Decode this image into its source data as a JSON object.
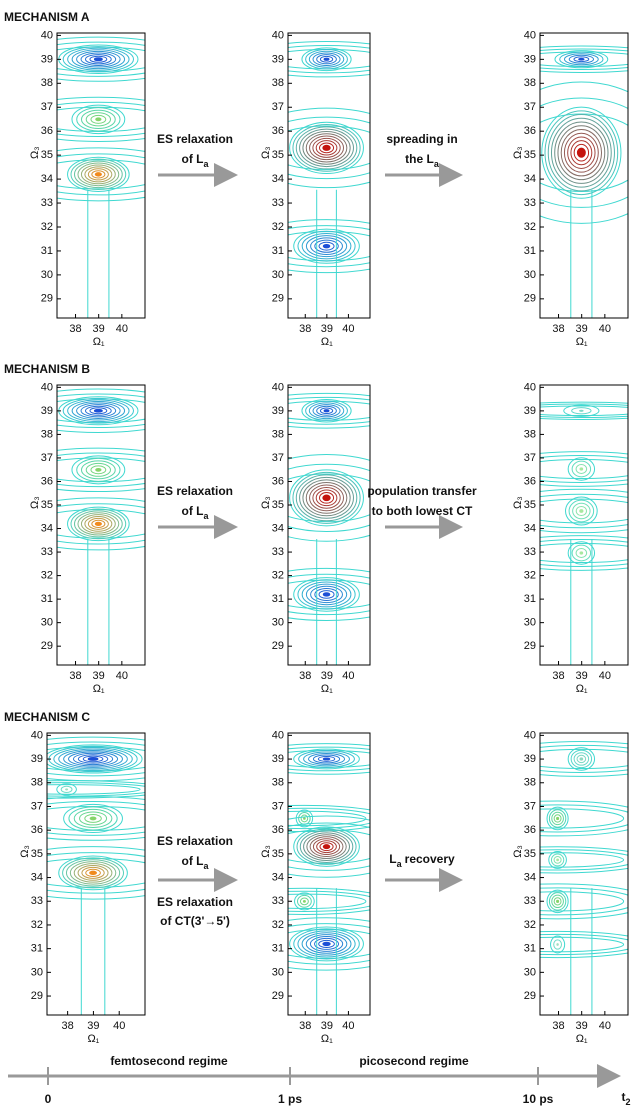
{
  "rows": [
    {
      "title": "MECHANISM A",
      "steps": [
        {
          "lines": [
            {
              "text": "ES relaxation"
            },
            {
              "text": "of L",
              "sub": "a"
            }
          ]
        },
        {
          "lines": [
            {
              "text": "spreading in"
            },
            {
              "text": "the L",
              "sub": "a"
            }
          ]
        }
      ]
    },
    {
      "title": "MECHANISM B",
      "steps": [
        {
          "lines": [
            {
              "text": "ES relaxation"
            },
            {
              "text": "of L",
              "sub": "a"
            }
          ]
        },
        {
          "lines": [
            {
              "text": "population transfer"
            },
            {
              "text": "to both lowest CT"
            }
          ]
        }
      ]
    },
    {
      "title": "MECHANISM C",
      "steps": [
        {
          "lines": [
            {
              "text": "ES relaxation"
            },
            {
              "text": "of L",
              "sub": "a"
            },
            {
              "text": "ES relaxation"
            },
            {
              "text": "of CT(3'→5')"
            }
          ]
        },
        {
          "lines": [
            {
              "text": "L",
              "sub": "a",
              "after": "recovery"
            }
          ]
        }
      ]
    }
  ],
  "chart_data": [
    {
      "type": "contour",
      "xlabel": "Ω₁",
      "ylabel": "Ω₃",
      "xlim": [
        37.2,
        41
      ],
      "ylim": [
        28.2,
        40.1
      ],
      "xticks": [
        38,
        39,
        40
      ],
      "yticks": [
        29,
        30,
        31,
        32,
        33,
        34,
        35,
        36,
        37,
        38,
        39,
        40
      ]
    },
    {
      "type": "contour",
      "xlabel": "Ω₁",
      "ylabel": "Ω₃",
      "xlim": [
        37.2,
        41
      ],
      "ylim": [
        28.2,
        40.1
      ],
      "xticks": [
        38,
        39,
        40
      ],
      "yticks": [
        29,
        30,
        31,
        32,
        33,
        34,
        35,
        36,
        37,
        38,
        39,
        40
      ]
    },
    {
      "type": "contour",
      "xlabel": "Ω₁",
      "ylabel": "Ω₃",
      "xlim": [
        37.2,
        41
      ],
      "ylim": [
        28.2,
        40.1
      ],
      "xticks": [
        38,
        39,
        40
      ],
      "yticks": [
        29,
        30,
        31,
        32,
        33,
        34,
        35,
        36,
        37,
        38,
        39,
        40
      ]
    },
    {
      "type": "contour",
      "xlabel": "Ω₁",
      "ylabel": "Ω₃",
      "xlim": [
        37.2,
        41
      ],
      "ylim": [
        28.2,
        40.1
      ],
      "xticks": [
        38,
        39,
        40
      ],
      "yticks": [
        29,
        30,
        31,
        32,
        33,
        34,
        35,
        36,
        37,
        38,
        39,
        40
      ]
    },
    {
      "type": "contour",
      "xlabel": "Ω₁",
      "ylabel": "Ω₃",
      "xlim": [
        37.2,
        41
      ],
      "ylim": [
        28.2,
        40.1
      ],
      "xticks": [
        38,
        39,
        40
      ],
      "yticks": [
        29,
        30,
        31,
        32,
        33,
        34,
        35,
        36,
        37,
        38,
        39,
        40
      ]
    },
    {
      "type": "contour",
      "xlabel": "Ω₁",
      "ylabel": "Ω₃",
      "xlim": [
        37.2,
        41
      ],
      "ylim": [
        28.2,
        40.1
      ],
      "xticks": [
        38,
        39,
        40
      ],
      "yticks": [
        29,
        30,
        31,
        32,
        33,
        34,
        35,
        36,
        37,
        38,
        39,
        40
      ]
    },
    {
      "type": "contour",
      "xlabel": "Ω₁",
      "ylabel": "Ω₃",
      "xlim": [
        37.2,
        41
      ],
      "ylim": [
        28.2,
        40.1
      ],
      "xticks": [
        38,
        39,
        40
      ],
      "yticks": [
        29,
        30,
        31,
        32,
        33,
        34,
        35,
        36,
        37,
        38,
        39,
        40
      ]
    },
    {
      "type": "contour",
      "xlabel": "Ω₁",
      "ylabel": "Ω₃",
      "xlim": [
        37.2,
        41
      ],
      "ylim": [
        28.2,
        40.1
      ],
      "xticks": [
        38,
        39,
        40
      ],
      "yticks": [
        29,
        30,
        31,
        32,
        33,
        34,
        35,
        36,
        37,
        38,
        39,
        40
      ]
    },
    {
      "type": "contour",
      "xlabel": "Ω₁",
      "ylabel": "Ω₃",
      "xlim": [
        37.2,
        41
      ],
      "ylim": [
        28.2,
        40.1
      ],
      "xticks": [
        38,
        39,
        40
      ],
      "yticks": [
        29,
        30,
        31,
        32,
        33,
        34,
        35,
        36,
        37,
        38,
        39,
        40
      ]
    }
  ],
  "timeline": {
    "ticks": [
      "0",
      "1 ps",
      "10 ps"
    ],
    "regimes": [
      "femtosecond regime",
      "picosecond regime"
    ],
    "axis_label": "t",
    "axis_label_sub": "2"
  }
}
